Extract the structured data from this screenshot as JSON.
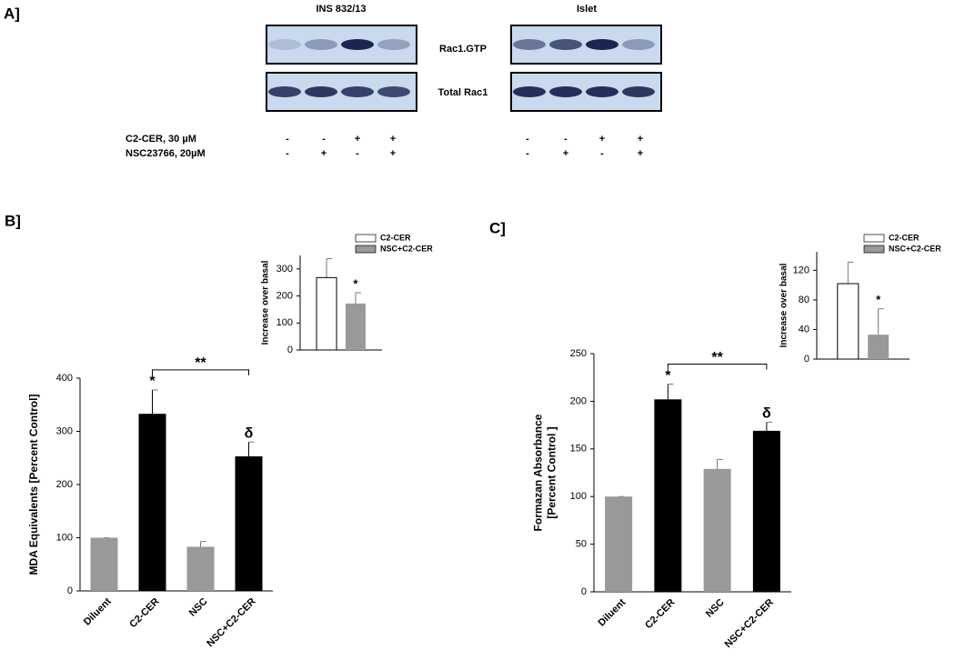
{
  "panel_a": {
    "label": "A]",
    "groups": [
      {
        "title": "INS 832/13"
      },
      {
        "title": "Islet"
      }
    ],
    "rows": [
      "Rac1.GTP",
      "Total Rac1"
    ],
    "treatments": [
      {
        "name": "C2-CER, 30 µM",
        "signs": [
          "-",
          "-",
          "+",
          "+"
        ]
      },
      {
        "name": "NSC23766, 20µM",
        "signs": [
          "-",
          "+",
          "-",
          "+"
        ]
      }
    ]
  },
  "chart_data": [
    {
      "type": "bar",
      "panel_label": "B]",
      "y_label": [
        "MDA Equivalents [Percent Control]"
      ],
      "categories": [
        "Diluent",
        "C2-CER",
        "NSC",
        "NSC+C2-CER"
      ],
      "values": [
        100,
        333,
        83,
        253
      ],
      "errors": [
        0,
        45,
        10,
        27
      ],
      "colors": [
        "#999999",
        "#000000",
        "#999999",
        "#000000"
      ],
      "bar_labels": [
        null,
        "*",
        null,
        "δ"
      ],
      "bracket_label": "**",
      "ylim": [
        0,
        400
      ],
      "yticks": [
        0,
        100,
        200,
        300,
        400
      ]
    },
    {
      "type": "bar",
      "y_label": [
        "Increase over basal"
      ],
      "categories": [
        null
      ],
      "series": [
        {
          "name": "C2-CER",
          "color": "#ffffff",
          "values": [
            268
          ],
          "errors": [
            70
          ],
          "bar_labels": [
            null
          ]
        },
        {
          "name": "NSC+C2-CER",
          "color": "#999999",
          "values": [
            172
          ],
          "errors": [
            40
          ],
          "bar_labels": [
            "*"
          ]
        }
      ],
      "ylim": [
        0,
        350
      ],
      "yticks": [
        0,
        100,
        200,
        300
      ]
    },
    {
      "type": "bar",
      "panel_label": "C]",
      "y_label": [
        "Formazan Absorbance",
        "[Percent Control ]"
      ],
      "categories": [
        "Diluent",
        "C2-CER",
        "NSC",
        "NSC+C2-CER"
      ],
      "values": [
        100,
        202,
        129,
        169
      ],
      "errors": [
        0,
        16,
        10,
        9
      ],
      "colors": [
        "#999999",
        "#000000",
        "#999999",
        "#000000"
      ],
      "bar_labels": [
        null,
        "*",
        null,
        "δ"
      ],
      "bracket_label": "**",
      "ylim": [
        0,
        250
      ],
      "yticks": [
        0,
        50,
        100,
        150,
        200,
        250
      ]
    },
    {
      "type": "bar",
      "y_label": [
        "Increase over basal"
      ],
      "categories": [
        null
      ],
      "series": [
        {
          "name": "C2-CER",
          "color": "#ffffff",
          "values": [
            102
          ],
          "errors": [
            29
          ],
          "bar_labels": [
            null
          ]
        },
        {
          "name": "NSC+C2-CER",
          "color": "#999999",
          "values": [
            33
          ],
          "errors": [
            35
          ],
          "bar_labels": [
            "*"
          ]
        }
      ],
      "ylim": [
        0,
        145
      ],
      "yticks": [
        0,
        40,
        80,
        120
      ]
    }
  ]
}
